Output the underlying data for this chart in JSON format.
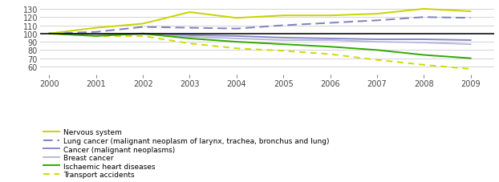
{
  "years": [
    2000,
    2001,
    2002,
    2003,
    2004,
    2005,
    2006,
    2007,
    2008,
    2009
  ],
  "nervous_system": [
    100,
    107,
    112,
    126,
    119,
    122,
    122,
    124,
    130,
    127
  ],
  "lung_cancer": [
    100,
    102,
    108,
    107,
    106,
    110,
    113,
    116,
    120,
    119
  ],
  "cancer": [
    100,
    99,
    100,
    98,
    97,
    95,
    94,
    93,
    93,
    92
  ],
  "breast_cancer": [
    100,
    98,
    99,
    96,
    94,
    92,
    92,
    90,
    89,
    87
  ],
  "ischaemic": [
    100,
    97,
    100,
    94,
    90,
    87,
    84,
    80,
    74,
    70
  ],
  "transport": [
    100,
    97,
    97,
    88,
    82,
    79,
    75,
    68,
    62,
    57
  ],
  "ylim": [
    50,
    135
  ],
  "yticks": [
    60,
    70,
    80,
    90,
    100,
    110,
    120,
    130
  ],
  "color_nervous": "#c8d400",
  "color_lung": "#8080c0",
  "color_cancer": "#8888cc",
  "color_breast": "#b8b8dd",
  "color_ischaemic": "#33aa00",
  "color_transport": "#ccdd00",
  "bg_color": "#ffffff",
  "grid_color": "#cccccc",
  "legend_labels": [
    "Nervous system",
    "Lung cancer (malignant neoplasm of larynx, trachea, bronchus and lung)",
    "Cancer (malignant neoplasms)",
    "Breast cancer",
    "Ischaemic heart diseases",
    "Transport accidents"
  ]
}
